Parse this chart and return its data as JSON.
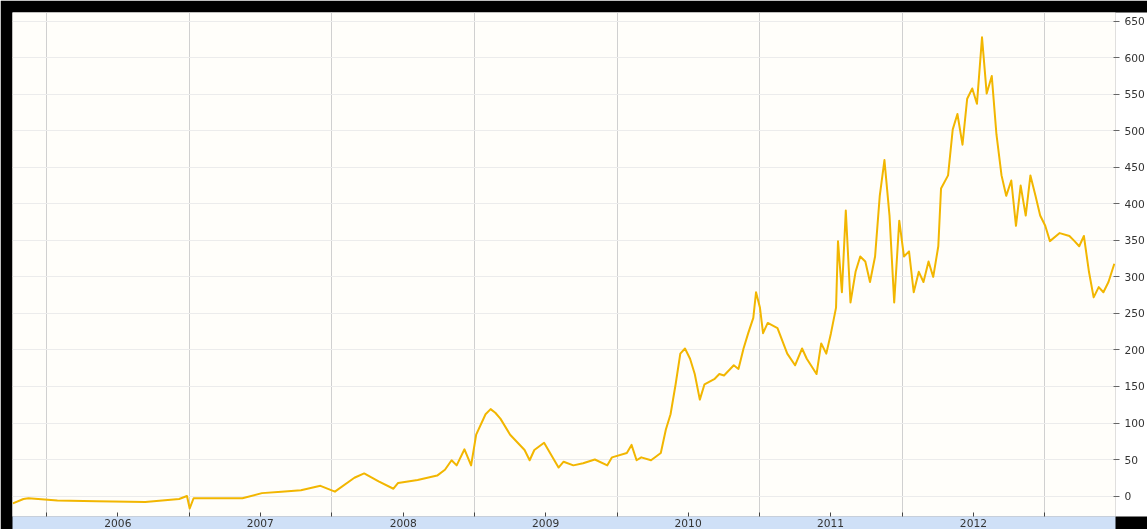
{
  "chart_data": {
    "type": "line",
    "color": "#f2b600",
    "grid": true,
    "marker": "none",
    "line_style": "solid",
    "x": [
      "2005-10-06",
      "2005-11-02",
      "2005-11-15",
      "2006-01-28",
      "2006-05-08",
      "2006-09-10",
      "2006-12-06",
      "2006-12-26",
      "2007-01-02",
      "2007-01-12",
      "2007-05-17",
      "2007-07-06",
      "2007-08-25",
      "2007-10-14",
      "2007-12-03",
      "2008-01-09",
      "2008-02-28",
      "2008-03-24",
      "2008-04-30",
      "2008-06-07",
      "2008-06-19",
      "2008-08-08",
      "2008-09-27",
      "2008-10-17",
      "2008-11-03",
      "2008-11-16",
      "2008-12-06",
      "2008-12-23",
      "2009-01-05",
      "2009-01-29",
      "2009-02-11",
      "2009-02-23",
      "2009-03-08",
      "2009-04-02",
      "2009-05-09",
      "2009-05-22",
      "2009-06-03",
      "2009-06-28",
      "2009-08-04",
      "2009-08-17",
      "2009-09-11",
      "2009-10-06",
      "2009-11-05",
      "2009-12-07",
      "2009-12-19",
      "2010-01-26",
      "2010-02-07",
      "2010-02-20",
      "2010-03-04",
      "2010-03-29",
      "2010-04-23",
      "2010-05-06",
      "2010-05-18",
      "2010-05-31",
      "2010-06-12",
      "2010-06-24",
      "2010-07-07",
      "2010-07-19",
      "2010-08-01",
      "2010-08-13",
      "2010-09-07",
      "2010-09-20",
      "2010-10-02",
      "2010-10-27",
      "2010-11-08",
      "2010-11-21",
      "2010-12-03",
      "2010-12-16",
      "2010-12-23",
      "2011-01-02",
      "2011-01-10",
      "2011-01-22",
      "2011-02-16",
      "2011-03-13",
      "2011-04-02",
      "2011-04-20",
      "2011-05-02",
      "2011-05-27",
      "2011-06-08",
      "2011-06-21",
      "2011-07-03",
      "2011-07-16",
      "2011-07-21",
      "2011-07-31",
      "2011-08-10",
      "2011-08-22",
      "2011-09-04",
      "2011-09-16",
      "2011-09-29",
      "2011-10-11",
      "2011-10-24",
      "2011-11-05",
      "2011-11-17",
      "2011-11-30",
      "2011-12-12",
      "2011-12-25",
      "2012-01-06",
      "2012-01-19",
      "2012-01-31",
      "2012-02-13",
      "2012-02-25",
      "2012-03-09",
      "2012-03-21",
      "2012-04-03",
      "2012-04-10",
      "2012-04-28",
      "2012-05-10",
      "2012-05-22",
      "2012-06-04",
      "2012-06-16",
      "2012-06-29",
      "2012-07-11",
      "2012-07-24",
      "2012-08-05",
      "2012-08-18",
      "2012-08-30",
      "2012-09-12",
      "2012-09-24",
      "2012-10-07",
      "2012-10-19",
      "2012-10-31",
      "2012-11-13",
      "2012-11-25",
      "2012-12-08",
      "2012-12-20",
      "2013-01-02",
      "2013-01-14",
      "2013-02-08",
      "2013-03-05",
      "2013-03-18",
      "2013-03-30",
      "2013-04-11",
      "2013-04-24",
      "2013-05-06",
      "2013-05-19",
      "2013-05-31",
      "2013-06-13",
      "2013-06-28"
    ],
    "values": [
      -10,
      -4,
      -3,
      -6,
      -7,
      -8,
      -4,
      0,
      -17,
      -3,
      -3,
      4,
      6,
      8,
      14,
      6,
      25,
      31,
      20,
      10,
      18,
      22,
      28,
      36,
      49,
      42,
      64,
      42,
      84,
      112,
      119,
      114,
      106,
      84,
      63,
      49,
      63,
      73,
      39,
      47,
      42,
      45,
      50,
      42,
      53,
      59,
      70,
      49,
      53,
      49,
      59,
      91,
      112,
      153,
      195,
      202,
      188,
      167,
      132,
      153,
      160,
      167,
      165,
      179,
      174,
      202,
      223,
      244,
      279,
      258,
      223,
      237,
      230,
      195,
      179,
      202,
      188,
      167,
      209,
      195,
      223,
      258,
      349,
      279,
      391,
      265,
      307,
      328,
      321,
      293,
      328,
      411,
      460,
      384,
      265,
      377,
      328,
      335,
      279,
      307,
      293,
      321,
      300,
      342,
      421,
      439,
      502,
      523,
      481,
      544,
      558,
      537,
      628,
      551,
      575,
      495,
      439,
      411,
      432,
      370,
      425,
      384,
      439,
      411,
      384,
      370,
      349,
      360,
      356,
      349,
      342,
      356,
      307,
      272,
      286,
      279,
      293,
      318
    ],
    "xlim": [
      "2005-10-05",
      "2013-07-01"
    ],
    "ylim": [
      -28,
      662
    ],
    "xticks": [
      {
        "value": "2006-01-01",
        "label": null
      },
      {
        "value": "2006-07-02",
        "label": "2006"
      },
      {
        "value": "2007-01-01",
        "label": null
      },
      {
        "value": "2007-07-02",
        "label": "2007"
      },
      {
        "value": "2008-01-01",
        "label": null
      },
      {
        "value": "2008-07-02",
        "label": "2008"
      },
      {
        "value": "2009-01-01",
        "label": null
      },
      {
        "value": "2009-07-02",
        "label": "2009"
      },
      {
        "value": "2010-01-01",
        "label": null
      },
      {
        "value": "2010-07-02",
        "label": "2010"
      },
      {
        "value": "2011-01-01",
        "label": null
      },
      {
        "value": "2011-07-02",
        "label": "2011"
      },
      {
        "value": "2012-01-01",
        "label": null
      },
      {
        "value": "2012-07-02",
        "label": "2012"
      },
      {
        "value": "2013-01-01",
        "label": null
      }
    ],
    "yticks": [
      0,
      50,
      100,
      150,
      200,
      250,
      300,
      350,
      400,
      450,
      500,
      550,
      600,
      650
    ]
  }
}
